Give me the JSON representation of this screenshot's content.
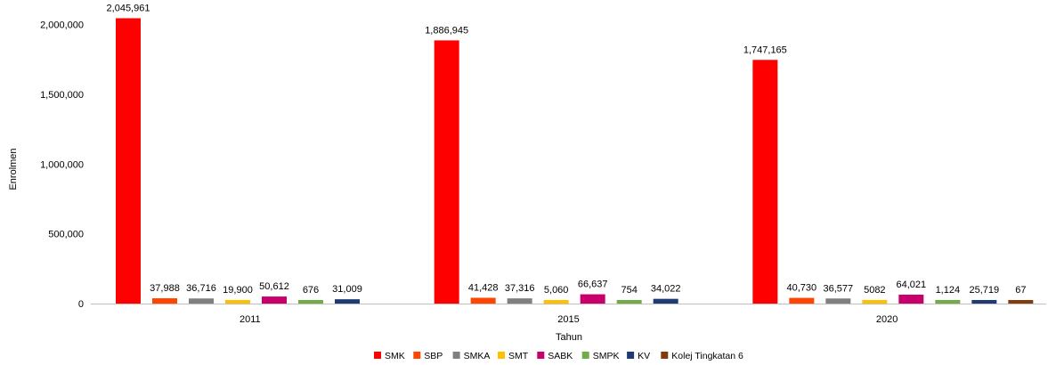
{
  "chart_data": {
    "type": "bar",
    "categories": [
      "2011",
      "2015",
      "2020"
    ],
    "xlabel": "Tahun",
    "ylabel": "Enrolmen",
    "ylim": [
      0,
      2100000
    ],
    "yticks": [
      0,
      500000,
      1000000,
      1500000,
      2000000
    ],
    "ytick_labels": [
      "0",
      "500,000",
      "1,000,000",
      "1,500,000",
      "2,000,000"
    ],
    "grid": false,
    "legend_position": "bottom",
    "series": [
      {
        "name": "SMK",
        "color": "#ff0000",
        "values": [
          2045961,
          1886945,
          1747165
        ],
        "labels": [
          "2,045,961",
          "1,886,945",
          "1,747,165"
        ]
      },
      {
        "name": "SBP",
        "color": "#ff4500",
        "values": [
          37988,
          41428,
          40730
        ],
        "labels": [
          "37,988",
          "41,428",
          "40,730"
        ]
      },
      {
        "name": "SMKA",
        "color": "#808080",
        "values": [
          36716,
          37316,
          36577
        ],
        "labels": [
          "36,716",
          "37,316",
          "36,577"
        ]
      },
      {
        "name": "SMT",
        "color": "#ffc000",
        "values": [
          19900,
          5060,
          5082
        ],
        "labels": [
          "19,900",
          "5,060",
          "5082"
        ]
      },
      {
        "name": "SABK",
        "color": "#c9006b",
        "values": [
          50612,
          66637,
          64021
        ],
        "labels": [
          "50,612",
          "66,637",
          "64,021"
        ]
      },
      {
        "name": "SMPK",
        "color": "#70ad47",
        "values": [
          676,
          754,
          1124
        ],
        "labels": [
          "676",
          "754",
          "1,124"
        ]
      },
      {
        "name": "KV",
        "color": "#1f3b73",
        "values": [
          31009,
          34022,
          25719
        ],
        "labels": [
          "31,009",
          "34,022",
          "25,719"
        ]
      },
      {
        "name": "Kolej Tingkatan 6",
        "color": "#843c0c",
        "values": [
          null,
          null,
          67
        ],
        "labels": [
          "",
          "",
          "67"
        ]
      }
    ]
  }
}
